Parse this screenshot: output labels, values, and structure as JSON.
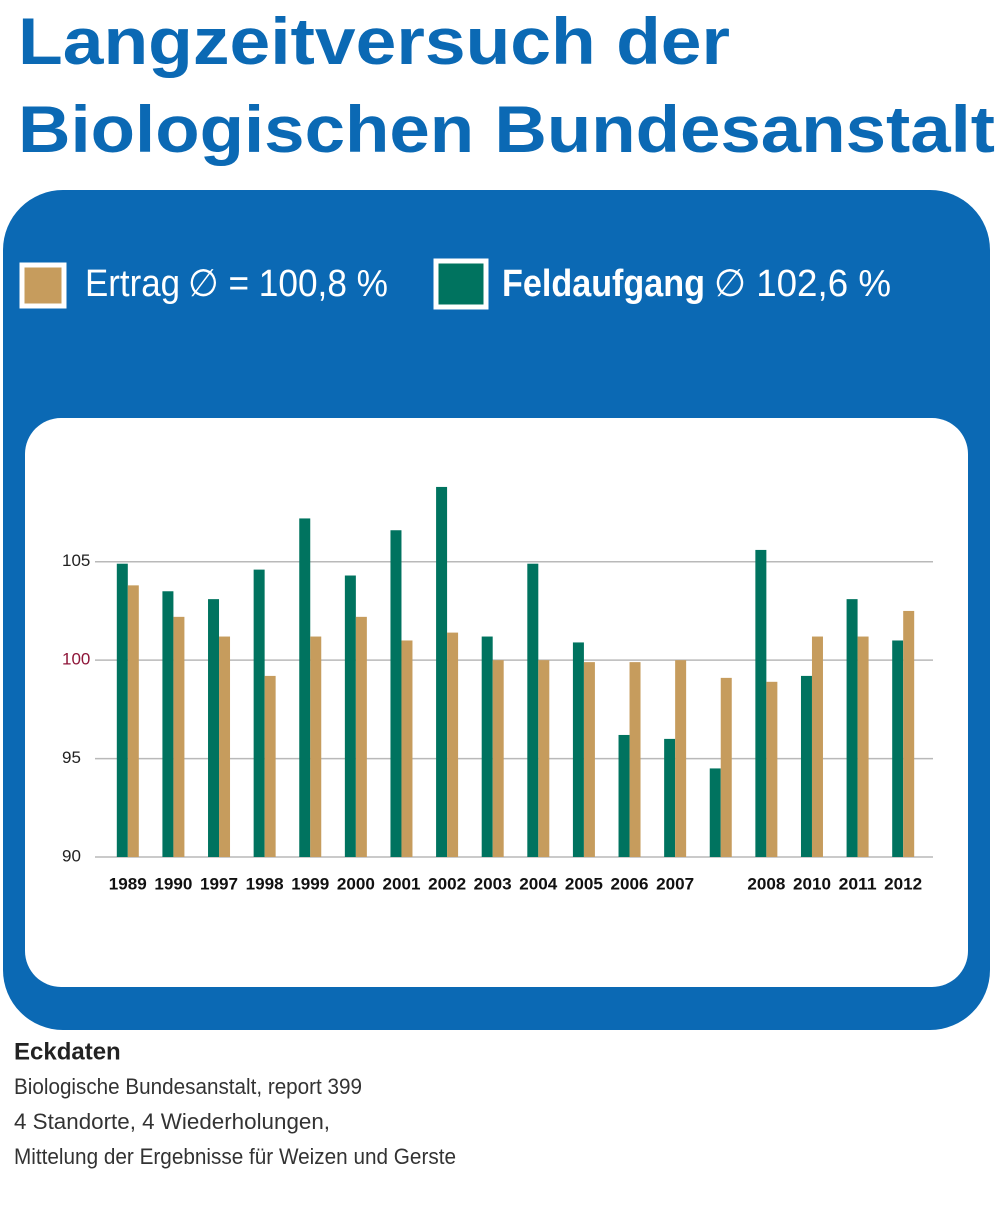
{
  "chart_data": {
    "type": "bar",
    "title_lines": [
      "Langzeitversuch der",
      "Biologischen Bundesanstalt"
    ],
    "categories": [
      "1989",
      "1990",
      "1997",
      "1998",
      "1999",
      "2000",
      "2001",
      "2002",
      "2003",
      "2004",
      "2005",
      "2006",
      "2007",
      null,
      "2008",
      "2010",
      "2011",
      "2012"
    ],
    "series": [
      {
        "name": "Feldaufgang",
        "average_label": "∅  102,6 %",
        "color": "#00735f",
        "values": [
          104.9,
          103.5,
          103.1,
          104.6,
          107.2,
          104.3,
          106.6,
          108.8,
          101.2,
          104.9,
          100.9,
          96.2,
          96.0,
          94.5,
          105.6,
          99.2,
          103.1,
          101.0
        ]
      },
      {
        "name": "Ertrag",
        "average_label": "∅ = 100,8 %",
        "color": "#c69c5d",
        "values": [
          103.8,
          102.2,
          101.2,
          99.2,
          101.2,
          102.2,
          101.0,
          101.4,
          100.0,
          100.0,
          99.9,
          99.9,
          100.0,
          99.1,
          98.9,
          101.2,
          101.2,
          102.5
        ]
      }
    ],
    "ylim": [
      90,
      109
    ],
    "yticks": [
      90,
      95,
      100,
      105
    ],
    "grid": true
  },
  "footer": {
    "heading": "Eckdaten",
    "lines": [
      "Biologische Bundesanstalt, report 399",
      "4 Standorte, 4 Wiederholungen,",
      "Mittelung der Ergebnisse für Weizen und Gerste"
    ]
  }
}
